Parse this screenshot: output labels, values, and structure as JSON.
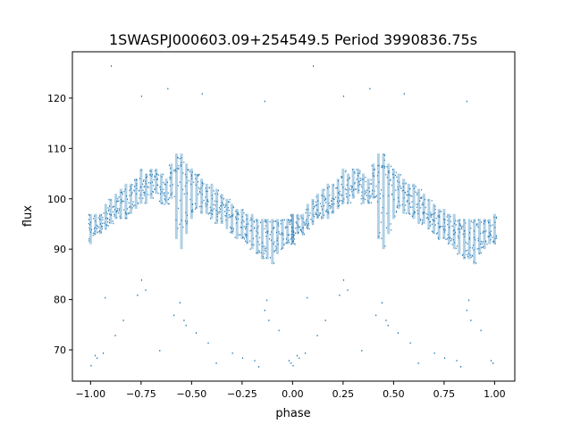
{
  "chart_data": {
    "type": "scatter",
    "title": "1SWASPJ000603.09+254549.5 Period 3990836.75s",
    "xlabel": "phase",
    "ylabel": "flux",
    "xlim": [
      -1.09,
      1.1
    ],
    "ylim": [
      63.8,
      129.2
    ],
    "xticks": [
      -1.0,
      -0.75,
      -0.5,
      -0.25,
      0.0,
      0.25,
      0.5,
      0.75,
      1.0
    ],
    "xtick_labels": [
      "−1.00",
      "−0.75",
      "−0.50",
      "−0.25",
      "0.00",
      "0.25",
      "0.50",
      "0.75",
      "1.00"
    ],
    "yticks": [
      70,
      80,
      90,
      100,
      110,
      120
    ],
    "ytick_labels": [
      "70",
      "80",
      "90",
      "100",
      "110",
      "120"
    ],
    "grid": false,
    "color": "#1f77b4",
    "mirrored_phase": true,
    "bands": [
      [
        0.0,
        94,
        91,
        97
      ],
      [
        0.025,
        95,
        93,
        97
      ],
      [
        0.05,
        95,
        93,
        97
      ],
      [
        0.075,
        96,
        94,
        99
      ],
      [
        0.1,
        97,
        95,
        100
      ],
      [
        0.125,
        98,
        96,
        101
      ],
      [
        0.15,
        99,
        96,
        102
      ],
      [
        0.175,
        99,
        96,
        103
      ],
      [
        0.2,
        100,
        97,
        103
      ],
      [
        0.225,
        101,
        98,
        104
      ],
      [
        0.25,
        102,
        99,
        106
      ],
      [
        0.275,
        102,
        99,
        105
      ],
      [
        0.3,
        103,
        100,
        106
      ],
      [
        0.325,
        103,
        101,
        106
      ],
      [
        0.35,
        102,
        99,
        105
      ],
      [
        0.375,
        101,
        99,
        104
      ],
      [
        0.4,
        103,
        100,
        107
      ],
      [
        0.425,
        104,
        92,
        109
      ],
      [
        0.45,
        106,
        90,
        109
      ],
      [
        0.475,
        103,
        93,
        107
      ],
      [
        0.5,
        102,
        96,
        106
      ],
      [
        0.525,
        102,
        98,
        105
      ],
      [
        0.55,
        101,
        97,
        104
      ],
      [
        0.575,
        100,
        97,
        103
      ],
      [
        0.6,
        99,
        96,
        103
      ],
      [
        0.625,
        98,
        95,
        102
      ],
      [
        0.65,
        98,
        95,
        101
      ],
      [
        0.675,
        97,
        94,
        100
      ],
      [
        0.7,
        96,
        93,
        99
      ],
      [
        0.725,
        96,
        92,
        98
      ],
      [
        0.75,
        95,
        92,
        98
      ],
      [
        0.775,
        94,
        91,
        97
      ],
      [
        0.8,
        94,
        90,
        97
      ],
      [
        0.825,
        93,
        89,
        96
      ],
      [
        0.85,
        93,
        88,
        96
      ],
      [
        0.875,
        92,
        88,
        96
      ],
      [
        0.9,
        92,
        87,
        96
      ],
      [
        0.925,
        93,
        89,
        96
      ],
      [
        0.95,
        93,
        90,
        96
      ],
      [
        0.975,
        94,
        91,
        96
      ],
      [
        1.0,
        94,
        91,
        97
      ]
    ],
    "outliers": [
      [
        0.1,
        126.5
      ],
      [
        0.25,
        120.5
      ],
      [
        0.38,
        122
      ],
      [
        0.55,
        121
      ],
      [
        0.86,
        119.5
      ],
      [
        0.27,
        82
      ],
      [
        0.25,
        84
      ],
      [
        0.23,
        81
      ],
      [
        0.44,
        79.5
      ],
      [
        0.46,
        76
      ],
      [
        0.47,
        75
      ],
      [
        0.52,
        73.5
      ],
      [
        0.41,
        77
      ],
      [
        0.03,
        68.5
      ],
      [
        0.06,
        69.5
      ],
      [
        0.0,
        67
      ],
      [
        0.98,
        68
      ],
      [
        0.99,
        67.5
      ],
      [
        0.02,
        69
      ],
      [
        0.7,
        69.5
      ],
      [
        0.75,
        68.5
      ],
      [
        0.81,
        68
      ],
      [
        0.83,
        66.8
      ],
      [
        0.88,
        76
      ],
      [
        0.87,
        80
      ],
      [
        0.86,
        78
      ],
      [
        0.34,
        70
      ],
      [
        0.62,
        67.5
      ],
      [
        0.58,
        71.5
      ],
      [
        0.16,
        76
      ],
      [
        0.12,
        73
      ],
      [
        0.07,
        80.5
      ],
      [
        0.93,
        74
      ]
    ]
  }
}
